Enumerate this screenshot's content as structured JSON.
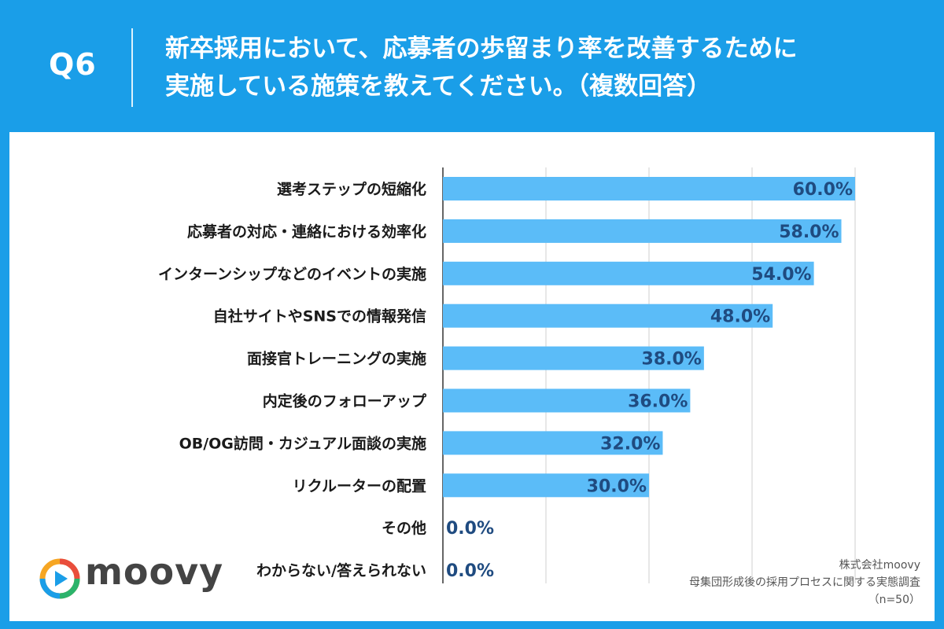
{
  "header": {
    "qnum": "Q6",
    "title_line1": "新卒採用において、応募者の歩留まり率を改善するために",
    "title_line2": "実施している施策を教えてください。（複数回答）"
  },
  "logo": {
    "text": "moovy"
  },
  "source": {
    "company": "株式会社moovy",
    "survey": "母集団形成後の採用プロセスに関する実態調査",
    "n": "（n=50）"
  },
  "colors": {
    "background": "#1a9ee8",
    "bar": "#5bbcf8",
    "value_label": "#1f4b80"
  },
  "chart_data": {
    "type": "bar",
    "orientation": "horizontal",
    "categories": [
      "選考ステップの短縮化",
      "応募者の対応・連絡における効率化",
      "インターンシップなどのイベントの実施",
      "自社サイトやSNSでの情報発信",
      "面接官トレーニングの実施",
      "内定後のフォローアップ",
      "OB/OG訪問・カジュアル面談の実施",
      "リクルーターの配置",
      "その他",
      "わからない/答えられない"
    ],
    "values": [
      60.0,
      58.0,
      54.0,
      48.0,
      38.0,
      36.0,
      32.0,
      30.0,
      0.0,
      0.0
    ],
    "value_labels": [
      "60.0%",
      "58.0%",
      "54.0%",
      "48.0%",
      "38.0%",
      "36.0%",
      "32.0%",
      "30.0%",
      "0.0%",
      "0.0%"
    ],
    "xlim": [
      0,
      60
    ],
    "grid": true
  }
}
